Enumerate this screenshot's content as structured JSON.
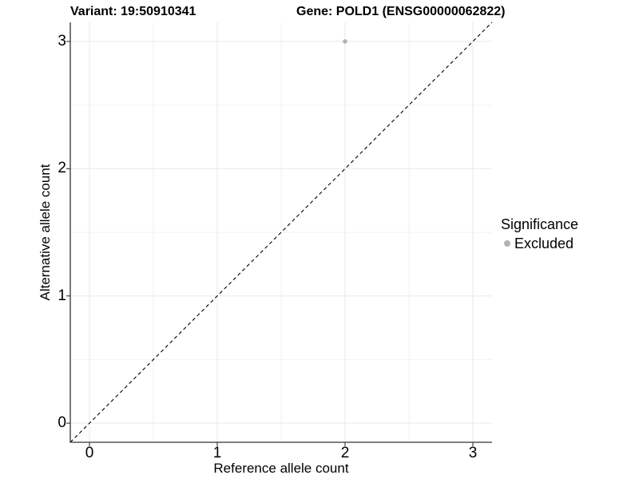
{
  "titles": {
    "variant": "Variant: 19:50910341",
    "gene": "Gene: POLD1 (ENSG00000062822)"
  },
  "chart_data": {
    "type": "scatter",
    "xlabel": "Reference allele count",
    "ylabel": "Alternative allele count",
    "xlim": [
      -0.15,
      3.15
    ],
    "ylim": [
      -0.15,
      3.15
    ],
    "x_ticks": [
      0,
      1,
      2,
      3
    ],
    "y_ticks": [
      0,
      1,
      2,
      3
    ],
    "x_minor_ticks": [
      0.5,
      1.5,
      2.5
    ],
    "y_minor_ticks": [
      0.5,
      1.5,
      2.5
    ],
    "grid": "major and minor, on",
    "points": [
      {
        "x": 2,
        "y": 3,
        "significance": "Excluded"
      }
    ],
    "identity_line": {
      "slope": 1,
      "intercept": 0,
      "style": "dashed"
    },
    "legend": {
      "title": "Significance",
      "position": "right",
      "entries": [
        {
          "label": "Excluded",
          "color": "#b3b3b3"
        }
      ]
    },
    "colors": {
      "point": "#b3b3b3",
      "grid_major": "#e9e9e9",
      "grid_minor": "#f2f2f2",
      "axis_line": "#333333",
      "tick_mark": "#333333",
      "identity_line": "#000000",
      "text": "#000000",
      "background": "#ffffff"
    }
  }
}
